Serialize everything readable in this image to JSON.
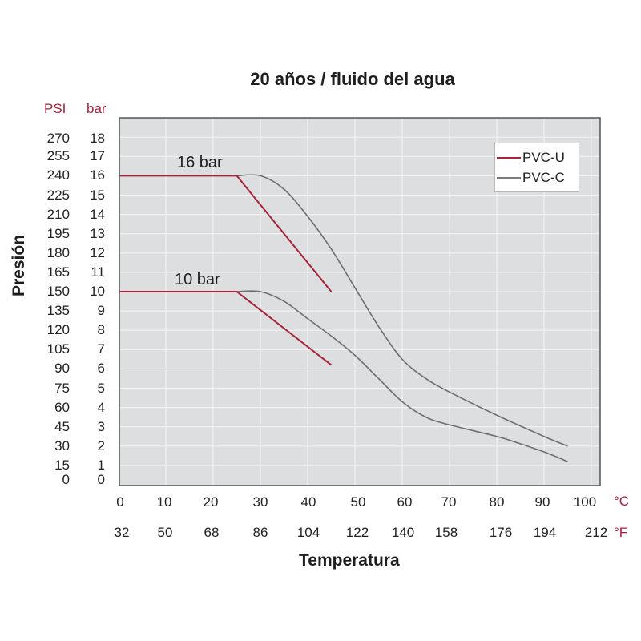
{
  "chart_data": {
    "type": "line",
    "title": "20 años / fluido del agua",
    "xlabel": "Temperatura",
    "ylabel": "Presión",
    "x_units": {
      "primary": "°C",
      "secondary": "°F"
    },
    "y_units": {
      "primary": "bar",
      "secondary": "PSI"
    },
    "xlim": [
      0,
      100
    ],
    "ylim": [
      0,
      18
    ],
    "grid": true,
    "legend_position": "upper right",
    "x_ticks_c": [
      "0",
      "10",
      "20",
      "30",
      "40",
      "50",
      "60",
      "70",
      "80",
      "90",
      "100"
    ],
    "x_ticks_f": [
      "32",
      "50",
      "68",
      "86",
      "104",
      "122",
      "140",
      "158",
      "176",
      "194",
      "212"
    ],
    "y_ticks_bar": [
      "0",
      "1",
      "2",
      "3",
      "4",
      "5",
      "6",
      "7",
      "8",
      "9",
      "10",
      "11",
      "12",
      "13",
      "14",
      "15",
      "16",
      "17",
      "18"
    ],
    "y_ticks_psi": [
      "0",
      "15",
      "30",
      "45",
      "60",
      "75",
      "90",
      "105",
      "120",
      "135",
      "150",
      "165",
      "180",
      "195",
      "210",
      "225",
      "240",
      "255",
      "270"
    ],
    "annotations": [
      "16 bar",
      "10 bar"
    ],
    "series": [
      {
        "name": "PVC-U",
        "group": "16 bar",
        "color": "#a6233a",
        "x": [
          0,
          25,
          45
        ],
        "y": [
          16,
          16,
          10
        ]
      },
      {
        "name": "PVC-U",
        "group": "10 bar",
        "color": "#a6233a",
        "x": [
          0,
          25,
          45
        ],
        "y": [
          10,
          10,
          6.2
        ]
      },
      {
        "name": "PVC-C",
        "group": "16 bar",
        "color": "#6e6e6e",
        "x": [
          25,
          30,
          35,
          40,
          45,
          50,
          55,
          60,
          65,
          70,
          80,
          90,
          95
        ],
        "y": [
          16,
          16,
          15.3,
          13.9,
          12.2,
          10.2,
          8.2,
          6.5,
          5.5,
          4.8,
          3.6,
          2.5,
          2.0
        ]
      },
      {
        "name": "PVC-C",
        "group": "10 bar",
        "color": "#6e6e6e",
        "x": [
          25,
          30,
          35,
          40,
          45,
          50,
          55,
          60,
          65,
          70,
          80,
          84,
          90,
          95
        ],
        "y": [
          10,
          10,
          9.5,
          8.6,
          7.7,
          6.7,
          5.5,
          4.3,
          3.5,
          3.1,
          2.5,
          2.2,
          1.7,
          1.2
        ]
      }
    ]
  },
  "header": {
    "title": "20 años / fluido del agua"
  },
  "axes": {
    "y_head_psi": "PSI",
    "y_head_bar": "bar",
    "y_title": "Presión",
    "x_title": "Temperatura",
    "x_unit_c": "°C",
    "x_unit_f": "°F"
  },
  "annotations": {
    "a16": "16 bar",
    "a10": "10 bar"
  },
  "legend": {
    "items": [
      {
        "label": "PVC-U",
        "color": "#a6233a"
      },
      {
        "label": "PVC-C",
        "color": "#6e6e6e"
      }
    ]
  },
  "colors": {
    "plot_bg": "#dcdedf",
    "grid": "#f2f2f2",
    "frame": "#555555",
    "accent_red": "#a0243c"
  }
}
